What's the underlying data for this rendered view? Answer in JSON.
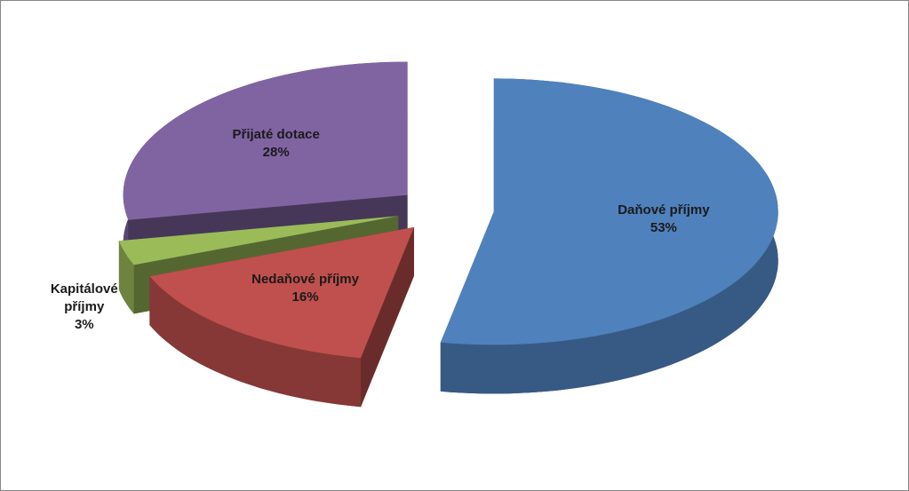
{
  "chart_data": {
    "type": "pie",
    "categories": [
      "Daňové příjmy",
      "Nedaňové příjmy",
      "Kapitálové příjmy",
      "Přijaté dotace"
    ],
    "values": [
      53,
      16,
      3,
      28
    ],
    "value_labels": [
      "53%",
      "16%",
      "3%",
      "28%"
    ],
    "colors": [
      "#4f81bd",
      "#c0504d",
      "#9bbb59",
      "#8064a2"
    ]
  }
}
